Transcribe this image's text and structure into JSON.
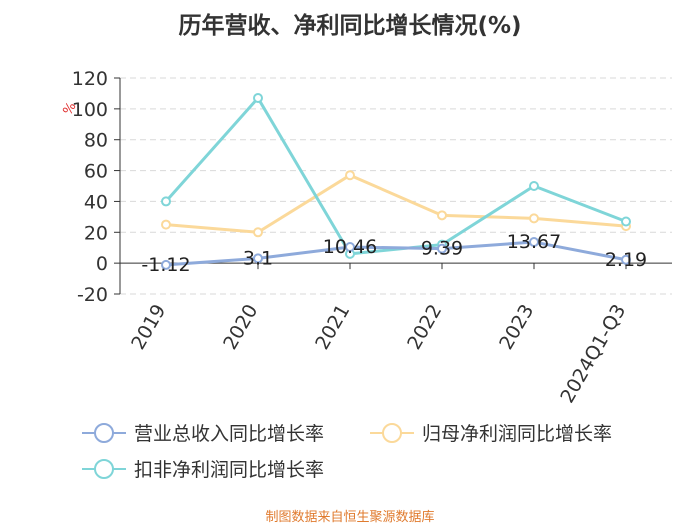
{
  "chart_data": {
    "type": "line",
    "title": "历年营收、净利同比增长情况(%)",
    "unit_label": "%",
    "categories": [
      "2019",
      "2020",
      "2021",
      "2022",
      "2023",
      "2024Q1-Q3"
    ],
    "ylim": [
      -20,
      120
    ],
    "yticks": [
      120,
      100,
      80,
      60,
      40,
      20,
      0,
      -20
    ],
    "grid": true,
    "legend_position": "bottom",
    "series": [
      {
        "name": "营业总收入同比增长率",
        "color": "#8eaadb",
        "values": [
          -1.12,
          3.1,
          10.46,
          9.39,
          13.67,
          2.19
        ],
        "data_labels": [
          "-1.12",
          "3.1",
          "10.46",
          "9.39",
          "13.67",
          "2.19"
        ]
      },
      {
        "name": "归母净利润同比增长率",
        "color": "#fbd99a",
        "values": [
          25,
          20,
          57,
          31,
          29,
          24
        ]
      },
      {
        "name": "扣非净利润同比增长率",
        "color": "#7fd5d8",
        "values": [
          40,
          107,
          6,
          12,
          50,
          27
        ]
      }
    ]
  },
  "footer": {
    "source": "制图数据来自恒生聚源数据库"
  }
}
